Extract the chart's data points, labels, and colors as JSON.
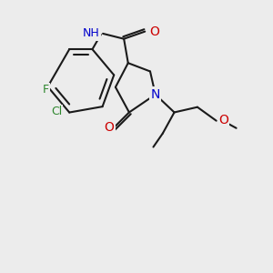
{
  "bg_color": "#ececec",
  "bond_color": "#1a1a1a",
  "line_width": 1.5,
  "atom_colors": {
    "O": "#cc0000",
    "N": "#0000cc",
    "Cl": "#2d862d",
    "F": "#2d862d",
    "H": "#555555"
  },
  "font_size": 9
}
